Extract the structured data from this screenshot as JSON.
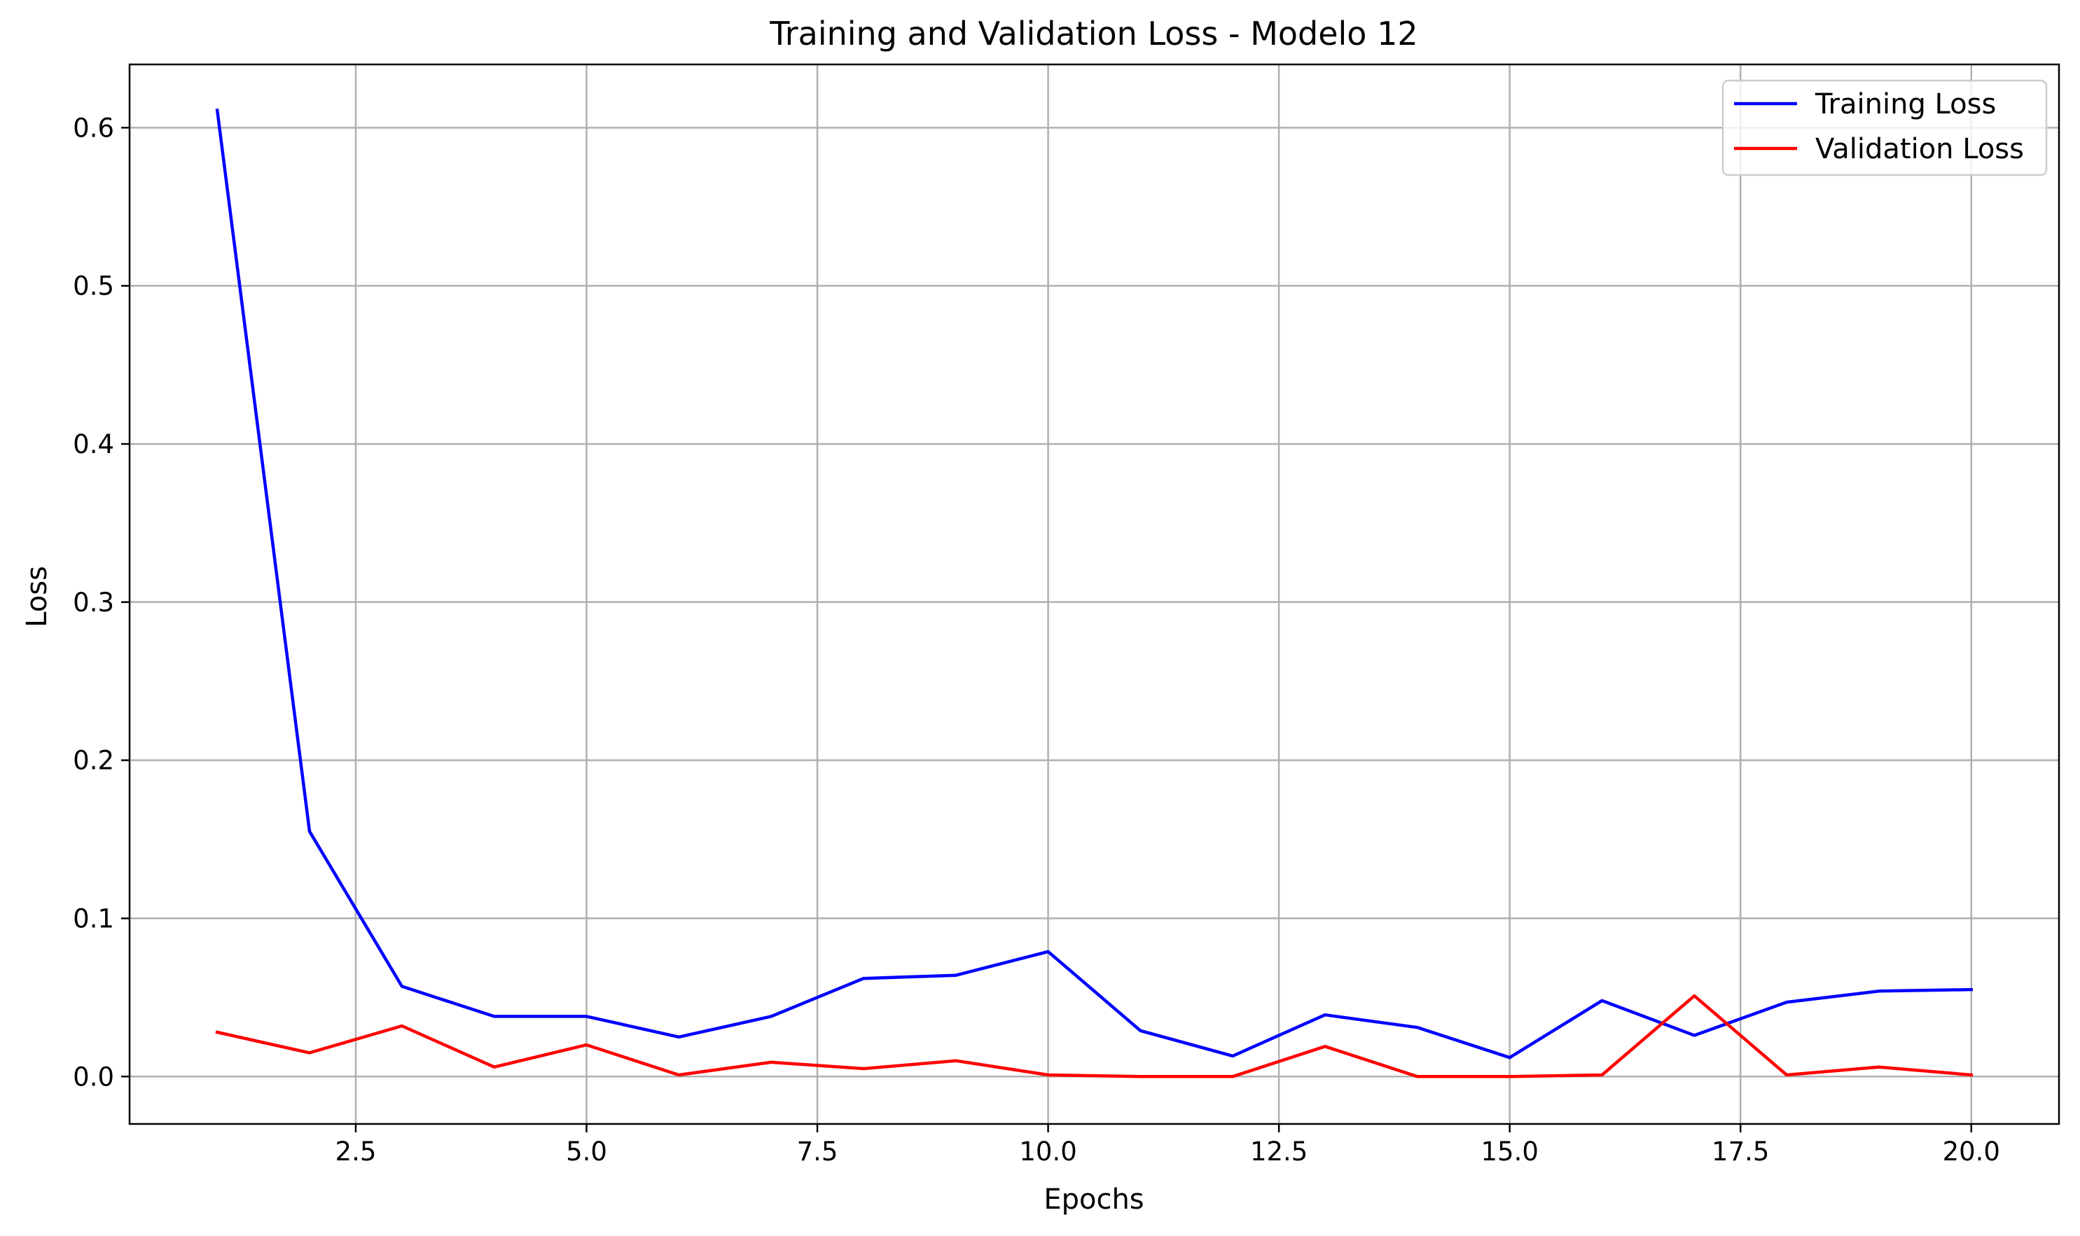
{
  "chart_data": {
    "type": "line",
    "title": "Training and Validation Loss - Modelo 12",
    "xlabel": "Epochs",
    "ylabel": "Loss",
    "xlim": [
      0.05,
      20.95
    ],
    "ylim": [
      -0.03,
      0.64
    ],
    "xticks": [
      2.5,
      5.0,
      7.5,
      10.0,
      12.5,
      15.0,
      17.5,
      20.0
    ],
    "xtick_labels": [
      "2.5",
      "5.0",
      "7.5",
      "10.0",
      "12.5",
      "15.0",
      "17.5",
      "20.0"
    ],
    "yticks": [
      0.0,
      0.1,
      0.2,
      0.3,
      0.4,
      0.5,
      0.6
    ],
    "ytick_labels": [
      "0.0",
      "0.1",
      "0.2",
      "0.3",
      "0.4",
      "0.5",
      "0.6"
    ],
    "grid": true,
    "legend_position": "top-right",
    "x": [
      1,
      2,
      3,
      4,
      5,
      6,
      7,
      8,
      9,
      10,
      11,
      12,
      13,
      14,
      15,
      16,
      17,
      18,
      19,
      20
    ],
    "series": [
      {
        "name": "Training Loss",
        "color": "#0000ff",
        "values": [
          0.611,
          0.155,
          0.057,
          0.038,
          0.038,
          0.025,
          0.038,
          0.062,
          0.064,
          0.079,
          0.029,
          0.013,
          0.039,
          0.031,
          0.012,
          0.048,
          0.026,
          0.047,
          0.054,
          0.055
        ]
      },
      {
        "name": "Validation Loss",
        "color": "#ff0000",
        "values": [
          0.028,
          0.015,
          0.032,
          0.006,
          0.02,
          0.001,
          0.009,
          0.005,
          0.01,
          0.001,
          0.0,
          0.0,
          0.019,
          0.0,
          0.0,
          0.001,
          0.051,
          0.001,
          0.006,
          0.001
        ]
      }
    ]
  }
}
